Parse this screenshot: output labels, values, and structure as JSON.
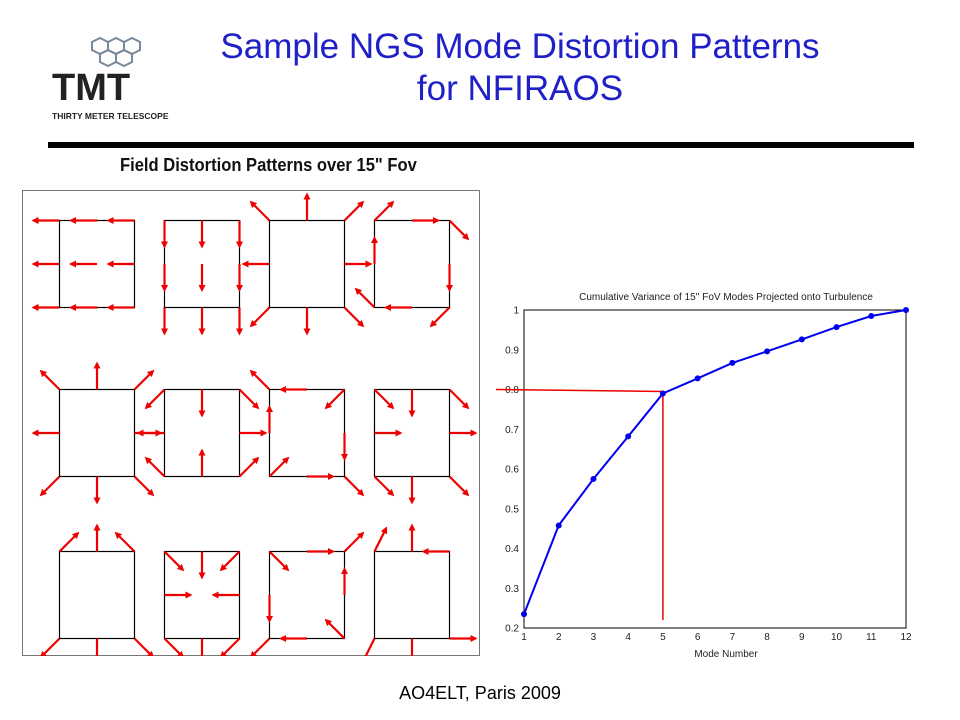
{
  "slide": {
    "title_line1": "Sample NGS Mode Distortion Patterns",
    "title_line2": "for NFIRAOS",
    "logo": {
      "wordmark": "TMT",
      "subtitle": "THIRTY METER TELESCOPE"
    },
    "footer": "AO4ELT, Paris 2009"
  },
  "field_figure": {
    "title": "Field Distortion Patterns over 15\" Fov",
    "rows": 3,
    "cols": 4,
    "arrow_color": "#ee0000"
  },
  "chart_data": {
    "type": "line",
    "title": "Cumulative Variance of 15'' FoV Modes Projected onto Turbulence",
    "xlabel": "Mode Number",
    "ylabel": "",
    "x": [
      1,
      2,
      3,
      4,
      5,
      6,
      7,
      8,
      9,
      10,
      11,
      12
    ],
    "series": [
      {
        "values": [
          0.235,
          0.458,
          0.575,
          0.682,
          0.79,
          0.828,
          0.867,
          0.896,
          0.926,
          0.957,
          0.985,
          1.0
        ],
        "color": "#0000ee"
      }
    ],
    "xlim": [
      1,
      12
    ],
    "ylim": [
      0.2,
      1
    ],
    "xticks": [
      1,
      2,
      3,
      4,
      5,
      6,
      7,
      8,
      9,
      10,
      11,
      12
    ],
    "yticks": [
      0.2,
      0.3,
      0.4,
      0.5,
      0.6,
      0.7,
      0.8,
      0.9,
      1
    ],
    "grid": true,
    "annotation": {
      "x": 5,
      "y": 0.8,
      "color": "#ee0000"
    }
  }
}
